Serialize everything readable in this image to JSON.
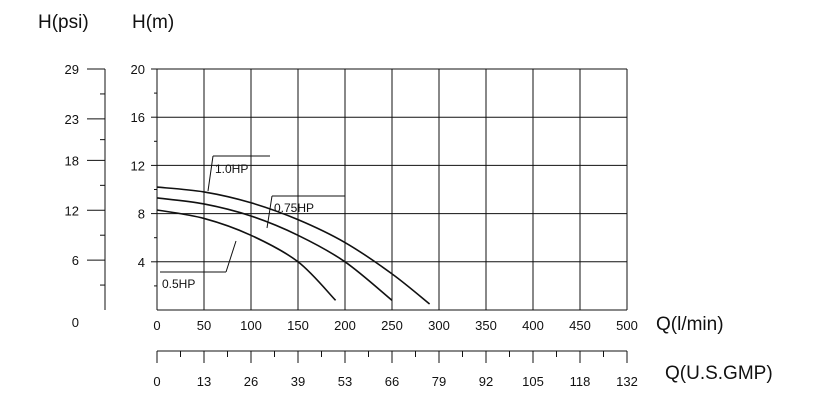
{
  "chart_data": {
    "type": "line",
    "axis_titles": {
      "y_left_outer": "H(psi)",
      "y_left_inner": "H(m)",
      "x_primary": "Q(l/min)",
      "x_secondary": "Q(U.S.GMP)"
    },
    "y_m_ticks": [
      "20",
      "16",
      "12",
      "8",
      "4"
    ],
    "y_m_tick_values": [
      20,
      16,
      12,
      8,
      4
    ],
    "y_psi_ticks": [
      "29",
      "23",
      "18",
      "12",
      "6",
      "0"
    ],
    "y_psi_tick_values": [
      29,
      23,
      18,
      12,
      6,
      0
    ],
    "x_lmin_ticks": [
      "0",
      "50",
      "100",
      "150",
      "200",
      "250",
      "300",
      "350",
      "400",
      "450",
      "500"
    ],
    "x_lmin_tick_values": [
      0,
      50,
      100,
      150,
      200,
      250,
      300,
      350,
      400,
      450,
      500
    ],
    "x_gpm_ticks": [
      "0",
      "13",
      "26",
      "39",
      "53",
      "66",
      "79",
      "92",
      "105",
      "118",
      "132"
    ],
    "xlim": [
      0,
      500
    ],
    "ylim": [
      0,
      20
    ],
    "grid": true,
    "series": [
      {
        "name": "1.0HP",
        "x": [
          0,
          50,
          100,
          150,
          200,
          250,
          290
        ],
        "y": [
          10.2,
          9.8,
          8.9,
          7.5,
          5.6,
          3.0,
          0.5
        ]
      },
      {
        "name": "0.75HP",
        "x": [
          0,
          50,
          100,
          150,
          200,
          250
        ],
        "y": [
          9.3,
          8.8,
          7.8,
          6.2,
          4.0,
          0.8
        ]
      },
      {
        "name": "0.5HP",
        "x": [
          0,
          50,
          100,
          150,
          190
        ],
        "y": [
          8.3,
          7.6,
          6.2,
          4.0,
          0.8
        ]
      }
    ],
    "curve_labels": [
      "1.0HP",
      "0.75HP",
      "0.5HP"
    ]
  },
  "colors": {
    "line": "#111111",
    "background": "#ffffff"
  }
}
